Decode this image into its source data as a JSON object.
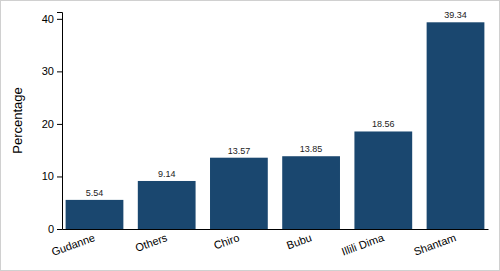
{
  "chart_data": {
    "type": "bar",
    "y_label": "Percentage",
    "categories": [
      "Gudanne",
      "Others",
      "Chiro",
      "Bubu",
      "Illili Dima",
      "Shantam"
    ],
    "values": [
      5.54,
      9.14,
      13.57,
      13.85,
      18.56,
      39.34
    ],
    "color": "#1a476f",
    "ylim": [
      0,
      41.3
    ],
    "yticks": [
      0,
      10,
      20,
      30,
      40
    ],
    "grid": false,
    "data_labels": true
  }
}
